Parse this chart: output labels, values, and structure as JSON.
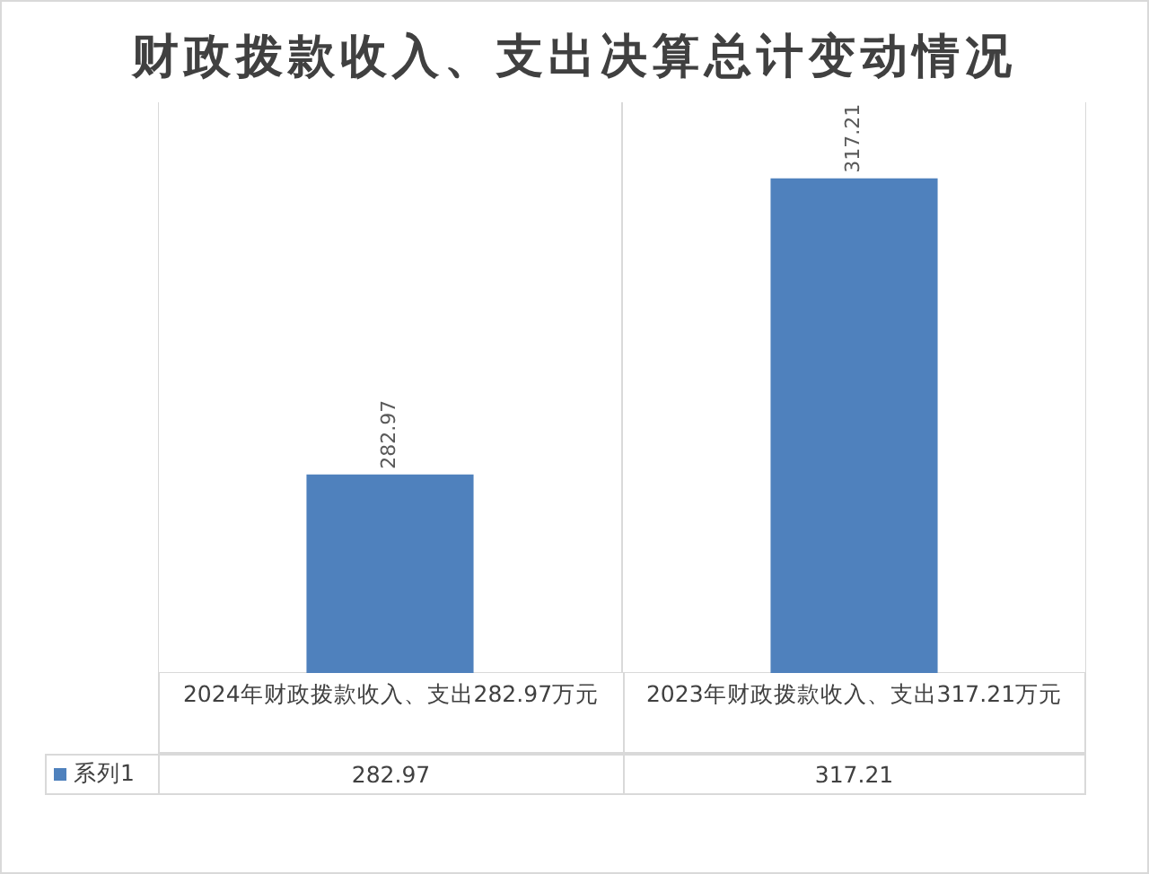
{
  "chart_data": {
    "type": "bar",
    "title": "财政拨款收入、支出决算总计变动情况",
    "categories": [
      "2024年财政拨款收入、支出282.97万元",
      "2023年财政拨款收入、支出317.21万元"
    ],
    "series": [
      {
        "name": "系列1",
        "color": "#4f81bd",
        "values": [
          282.97,
          317.21
        ],
        "value_labels": [
          "282.97",
          "317.21"
        ]
      }
    ],
    "ylim": [
      260,
      326
    ],
    "tick_labels": "x",
    "grid": "x",
    "legend": "bottom left"
  }
}
